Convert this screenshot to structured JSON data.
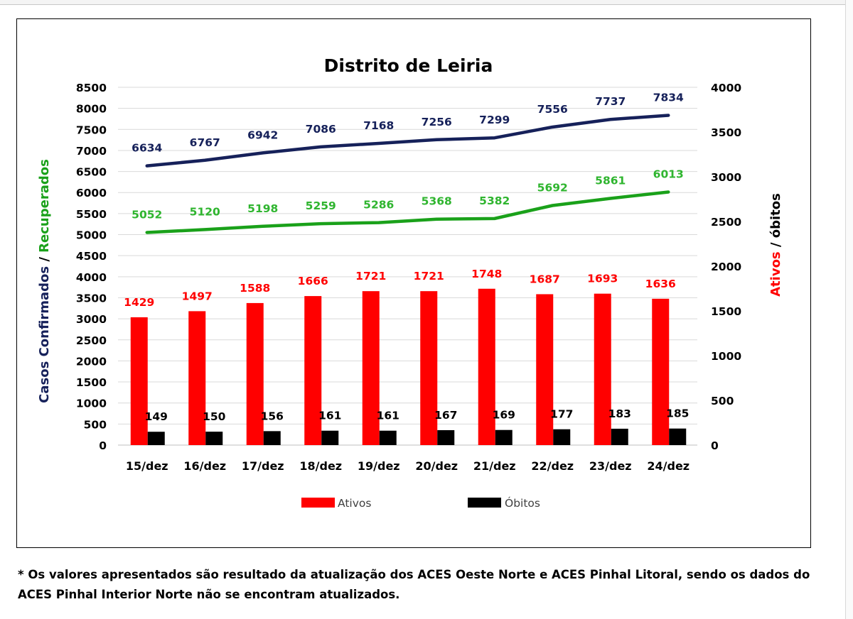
{
  "chart_data": {
    "type": "bar",
    "title": "Distrito de Leiria",
    "categories": [
      "15/dez",
      "16/dez",
      "17/dez",
      "18/dez",
      "19/dez",
      "20/dez",
      "21/dez",
      "22/dez",
      "23/dez",
      "24/dez"
    ],
    "y_left": {
      "label_part1": "Casos Confirmados",
      "label_sep": " / ",
      "label_part2": "Recuperados",
      "ylim": [
        0,
        8500
      ],
      "ticks": [
        0,
        500,
        1000,
        1500,
        2000,
        2500,
        3000,
        3500,
        4000,
        4500,
        5000,
        5500,
        6000,
        6500,
        7000,
        7500,
        8000,
        8500
      ]
    },
    "y_right": {
      "label_part1": "Ativos",
      "label_sep": " / ",
      "label_part2": "óbitos",
      "ylim": [
        0,
        4000
      ],
      "ticks": [
        0,
        500,
        1000,
        1500,
        2000,
        2500,
        3000,
        3500,
        4000
      ]
    },
    "series": [
      {
        "name": "Casos Confirmados",
        "type": "line",
        "axis": "left",
        "color": "#16215a",
        "values": [
          6634,
          6767,
          6942,
          7086,
          7168,
          7256,
          7299,
          7556,
          7737,
          7834
        ]
      },
      {
        "name": "Recuperados",
        "type": "line",
        "axis": "left",
        "color": "#1aa11a",
        "label_color": "#2fb52f",
        "values": [
          5052,
          5120,
          5198,
          5259,
          5286,
          5368,
          5382,
          5692,
          5861,
          6013
        ]
      },
      {
        "name": "Ativos",
        "type": "bar",
        "axis": "right",
        "color": "#ff0000",
        "values": [
          1429,
          1497,
          1588,
          1666,
          1721,
          1721,
          1748,
          1687,
          1693,
          1636
        ]
      },
      {
        "name": "Óbitos",
        "type": "bar",
        "axis": "right",
        "color": "#000000",
        "values": [
          149,
          150,
          156,
          161,
          161,
          167,
          169,
          177,
          183,
          185
        ]
      }
    ],
    "legend": {
      "position": "bottom",
      "items": [
        "Ativos",
        "Óbitos"
      ]
    },
    "grid": true
  },
  "footnote": "* Os valores apresentados são resultado da atualização dos ACES Oeste Norte e ACES Pinhal Litoral, sendo os dados do ACES Pinhal Interior Norte não se encontram atualizados."
}
